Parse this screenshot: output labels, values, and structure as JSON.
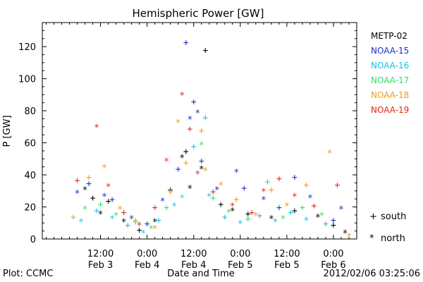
{
  "chart_data": {
    "type": "scatter",
    "title": "Hemispheric Power [GW]",
    "ylabel": "P [GW]",
    "xlabel": "Date and Time",
    "ylim": [
      0,
      135
    ],
    "yticks": [
      0,
      20,
      40,
      60,
      80,
      100,
      120
    ],
    "xlim_hours": [
      -15,
      66
    ],
    "x_ticks": [
      {
        "hour": 0,
        "line1": "12:00",
        "line2": "Feb 3"
      },
      {
        "hour": 12,
        "line1": "0:00",
        "line2": "Feb 4"
      },
      {
        "hour": 24,
        "line1": "12:00",
        "line2": "Feb 4"
      },
      {
        "hour": 36,
        "line1": "0:00",
        "line2": "Feb 5"
      },
      {
        "hour": 48,
        "line1": "12:00",
        "line2": "Feb 5"
      },
      {
        "hour": 60,
        "line1": "0:00",
        "line2": "Feb 6"
      }
    ],
    "x_reference": "Feb 3 12:00",
    "markers": {
      "south": "+",
      "north": "*"
    },
    "series": [
      {
        "name": "METP-02",
        "color": "#000000",
        "points": [
          {
            "x": -4,
            "y": 32,
            "m": "*"
          },
          {
            "x": -2,
            "y": 26,
            "m": "+"
          },
          {
            "x": 0,
            "y": 17,
            "m": "*"
          },
          {
            "x": 2,
            "y": 24,
            "m": "+"
          },
          {
            "x": 6,
            "y": 12,
            "m": "*"
          },
          {
            "x": 10,
            "y": 6,
            "m": "+"
          },
          {
            "x": 14,
            "y": 12,
            "m": "*"
          },
          {
            "x": 18,
            "y": 31,
            "m": "+"
          },
          {
            "x": 21,
            "y": 52,
            "m": "*"
          },
          {
            "x": 22,
            "y": 55,
            "m": "+"
          },
          {
            "x": 23,
            "y": 33,
            "m": "*"
          },
          {
            "x": 27,
            "y": 118,
            "m": "+"
          },
          {
            "x": 26,
            "y": 45,
            "m": "*"
          },
          {
            "x": 31,
            "y": 22,
            "m": "+"
          },
          {
            "x": 34,
            "y": 19,
            "m": "*"
          },
          {
            "x": 38,
            "y": 16,
            "m": "+"
          },
          {
            "x": 44,
            "y": 14,
            "m": "*"
          },
          {
            "x": 50,
            "y": 18,
            "m": "+"
          },
          {
            "x": 56,
            "y": 15,
            "m": "*"
          },
          {
            "x": 60,
            "y": 9,
            "m": "+"
          },
          {
            "x": 63,
            "y": 5,
            "m": "*"
          }
        ]
      },
      {
        "name": "NOAA-15",
        "color": "#1a2fc8",
        "points": [
          {
            "x": -6,
            "y": 30,
            "m": "*"
          },
          {
            "x": -3,
            "y": 35,
            "m": "+"
          },
          {
            "x": 1,
            "y": 28,
            "m": "*"
          },
          {
            "x": 3,
            "y": 25,
            "m": "+"
          },
          {
            "x": 8,
            "y": 14,
            "m": "*"
          },
          {
            "x": 12,
            "y": 10,
            "m": "+"
          },
          {
            "x": 16,
            "y": 25,
            "m": "*"
          },
          {
            "x": 20,
            "y": 44,
            "m": "+"
          },
          {
            "x": 22,
            "y": 123,
            "m": "+"
          },
          {
            "x": 23,
            "y": 76,
            "m": "*"
          },
          {
            "x": 24,
            "y": 86,
            "m": "+"
          },
          {
            "x": 25,
            "y": 80,
            "m": "*"
          },
          {
            "x": 26,
            "y": 49,
            "m": "+"
          },
          {
            "x": 30,
            "y": 32,
            "m": "*"
          },
          {
            "x": 35,
            "y": 43,
            "m": "*"
          },
          {
            "x": 37,
            "y": 32,
            "m": "+"
          },
          {
            "x": 42,
            "y": 26,
            "m": "*"
          },
          {
            "x": 46,
            "y": 20,
            "m": "+"
          },
          {
            "x": 50,
            "y": 39,
            "m": "+"
          },
          {
            "x": 54,
            "y": 27,
            "m": "*"
          },
          {
            "x": 60,
            "y": 12,
            "m": "+"
          },
          {
            "x": 62,
            "y": 20,
            "m": "*"
          }
        ]
      },
      {
        "name": "NOAA-16",
        "color": "#17c3e3",
        "points": [
          {
            "x": -5,
            "y": 12,
            "m": "*"
          },
          {
            "x": -1,
            "y": 18,
            "m": "+"
          },
          {
            "x": 3,
            "y": 14,
            "m": "*"
          },
          {
            "x": 7,
            "y": 9,
            "m": "+"
          },
          {
            "x": 11,
            "y": 5,
            "m": "*"
          },
          {
            "x": 15,
            "y": 12,
            "m": "+"
          },
          {
            "x": 19,
            "y": 22,
            "m": "*"
          },
          {
            "x": 24,
            "y": 58,
            "m": "+"
          },
          {
            "x": 27,
            "y": 76,
            "m": "+"
          },
          {
            "x": 28,
            "y": 28,
            "m": "*"
          },
          {
            "x": 32,
            "y": 14,
            "m": "+"
          },
          {
            "x": 36,
            "y": 11,
            "m": "*"
          },
          {
            "x": 41,
            "y": 15,
            "m": "+"
          },
          {
            "x": 45,
            "y": 12,
            "m": "*"
          },
          {
            "x": 49,
            "y": 17,
            "m": "+"
          },
          {
            "x": 53,
            "y": 13,
            "m": "*"
          },
          {
            "x": 58,
            "y": 10,
            "m": "+"
          }
        ]
      },
      {
        "name": "NOAA-17",
        "color": "#2fe06e",
        "points": [
          {
            "x": -4,
            "y": 20,
            "m": "*"
          },
          {
            "x": 0,
            "y": 22,
            "m": "+"
          },
          {
            "x": 4,
            "y": 16,
            "m": "*"
          },
          {
            "x": 9,
            "y": 11,
            "m": "+"
          },
          {
            "x": 13,
            "y": 8,
            "m": "*"
          },
          {
            "x": 17,
            "y": 20,
            "m": "+"
          },
          {
            "x": 21,
            "y": 27,
            "m": "*"
          },
          {
            "x": 26,
            "y": 60,
            "m": "*"
          },
          {
            "x": 29,
            "y": 26,
            "m": "+"
          },
          {
            "x": 33,
            "y": 18,
            "m": "*"
          },
          {
            "x": 38,
            "y": 13,
            "m": "+"
          },
          {
            "x": 43,
            "y": 36,
            "m": "+"
          },
          {
            "x": 47,
            "y": 14,
            "m": "*"
          },
          {
            "x": 52,
            "y": 20,
            "m": "+"
          },
          {
            "x": 57,
            "y": 16,
            "m": "*"
          }
        ]
      },
      {
        "name": "NOAA-18",
        "color": "#f29a1a",
        "points": [
          {
            "x": -7,
            "y": 14,
            "m": "+"
          },
          {
            "x": -3,
            "y": 39,
            "m": "+"
          },
          {
            "x": 1,
            "y": 46,
            "m": "*"
          },
          {
            "x": 5,
            "y": 20,
            "m": "*"
          },
          {
            "x": 9,
            "y": 12,
            "m": "+"
          },
          {
            "x": 14,
            "y": 8,
            "m": "*"
          },
          {
            "x": 18,
            "y": 30,
            "m": "+"
          },
          {
            "x": 20,
            "y": 74,
            "m": "*"
          },
          {
            "x": 22,
            "y": 48,
            "m": "+"
          },
          {
            "x": 26,
            "y": 68,
            "m": "+"
          },
          {
            "x": 27,
            "y": 44,
            "m": "*"
          },
          {
            "x": 31,
            "y": 35,
            "m": "*"
          },
          {
            "x": 35,
            "y": 25,
            "m": "+"
          },
          {
            "x": 40,
            "y": 16,
            "m": "*"
          },
          {
            "x": 44,
            "y": 31,
            "m": "+"
          },
          {
            "x": 48,
            "y": 22,
            "m": "*"
          },
          {
            "x": 53,
            "y": 34,
            "m": "+"
          },
          {
            "x": 59,
            "y": 55,
            "m": "*"
          },
          {
            "x": 64,
            "y": 3,
            "m": "*"
          }
        ]
      },
      {
        "name": "NOAA-19",
        "color": "#e0281a",
        "points": [
          {
            "x": -6,
            "y": 37,
            "m": "+"
          },
          {
            "x": -1,
            "y": 71,
            "m": "*"
          },
          {
            "x": 2,
            "y": 34,
            "m": "*"
          },
          {
            "x": 6,
            "y": 17,
            "m": "+"
          },
          {
            "x": 10,
            "y": 10,
            "m": "*"
          },
          {
            "x": 14,
            "y": 20,
            "m": "+"
          },
          {
            "x": 17,
            "y": 50,
            "m": "*"
          },
          {
            "x": 21,
            "y": 91,
            "m": "*"
          },
          {
            "x": 23,
            "y": 69,
            "m": "+"
          },
          {
            "x": 25,
            "y": 42,
            "m": "*"
          },
          {
            "x": 29,
            "y": 30,
            "m": "+"
          },
          {
            "x": 34,
            "y": 22,
            "m": "*"
          },
          {
            "x": 39,
            "y": 17,
            "m": "+"
          },
          {
            "x": 42,
            "y": 31,
            "m": "*"
          },
          {
            "x": 46,
            "y": 38,
            "m": "+"
          },
          {
            "x": 50,
            "y": 28,
            "m": "*"
          },
          {
            "x": 55,
            "y": 21,
            "m": "+"
          },
          {
            "x": 61,
            "y": 34,
            "m": "+"
          }
        ]
      }
    ]
  },
  "legend": {
    "south_label": "south",
    "north_label": "north"
  },
  "footer": {
    "plot_credit": "Plot: CCMC",
    "timestamp": "2012/02/06 03:25:06"
  }
}
